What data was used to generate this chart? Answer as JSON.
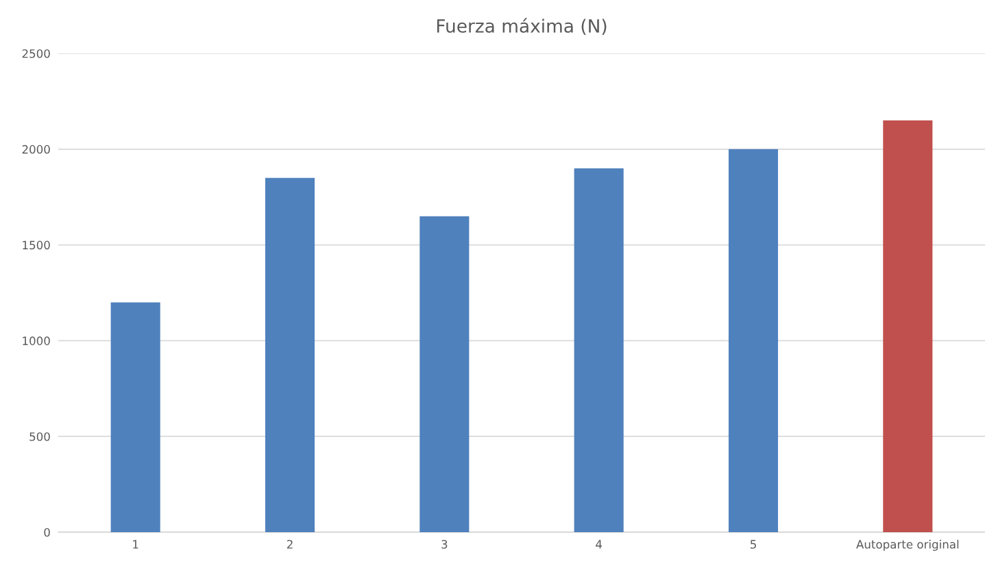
{
  "chart_data": {
    "type": "bar",
    "title": "Fuerza máxima (N)",
    "categories": [
      "1",
      "2",
      "3",
      "4",
      "5",
      "Autoparte original"
    ],
    "values": [
      1200,
      1850,
      1650,
      1900,
      2000,
      2150
    ],
    "colors": [
      "#4f81bd",
      "#4f81bd",
      "#4f81bd",
      "#4f81bd",
      "#4f81bd",
      "#c0504d"
    ],
    "ylim": [
      0,
      2500
    ],
    "yticks": [
      0,
      500,
      1000,
      1500,
      2000,
      2500
    ],
    "grid": "y",
    "legend": false
  }
}
